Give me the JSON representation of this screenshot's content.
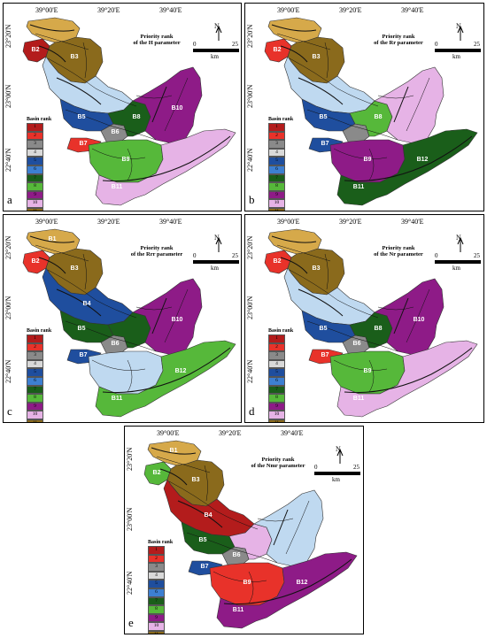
{
  "longitudes": [
    "39°00'E",
    "39°20'E",
    "39°40'E"
  ],
  "latitudes": [
    "23°20'N",
    "23°00'N",
    "22°40'N"
  ],
  "scale": {
    "zero": "0",
    "unit": "km",
    "max": "25"
  },
  "north_label": "N",
  "legend_title": "Basin rank",
  "legend_ranks": [
    "1",
    "2",
    "3",
    "4",
    "5",
    "6",
    "7",
    "8",
    "9",
    "10",
    "11",
    "12"
  ],
  "legend_colors": [
    "#b31c1c",
    "#e8322a",
    "#8a8a8a",
    "#d9d9d9",
    "#1f4e9e",
    "#3d7fd1",
    "#1a5e1a",
    "#56b83a",
    "#8e1b87",
    "#e6b3e6",
    "#8a6a1c",
    "#d6a94a"
  ],
  "panels": [
    {
      "letter": "a",
      "title1": "Priority rank",
      "title2": "of the H parameter",
      "basins": {
        "B1": "#d6a94a",
        "B2": "#b31c1c",
        "B3": "#8a6a1c",
        "B4": "#bfd9f0",
        "B5": "#1f4e9e",
        "B6": "#8a8a8a",
        "B7": "#e8322a",
        "B8": "#1a5e1a",
        "B9": "#56b83a",
        "B10": "#8e1b87",
        "B11": "#8a8a8a",
        "B12": "#e6b3e6"
      },
      "labels": [
        "B2",
        "B3",
        "B5",
        "B6",
        "B8",
        "B10",
        "B7",
        "B9",
        "B11"
      ]
    },
    {
      "letter": "b",
      "title1": "Priority rank",
      "title2": "of the Rr parameter",
      "basins": {
        "B1": "#d6a94a",
        "B2": "#e8322a",
        "B3": "#8a6a1c",
        "B4": "#bfd9f0",
        "B5": "#1f4e9e",
        "B6": "#8a8a8a",
        "B7": "#1f4e9e",
        "B8": "#56b83a",
        "B9": "#8e1b87",
        "B10": "#e6b3e6",
        "B11": "#b31c1c",
        "B12": "#1a5e1a"
      },
      "labels": [
        "B2",
        "B3",
        "B5",
        "B8",
        "B7",
        "B9",
        "B11",
        "B12"
      ]
    },
    {
      "letter": "c",
      "title1": "Priority rank",
      "title2": "of the Rrr parameter",
      "basins": {
        "B1": "#d6a94a",
        "B2": "#e8322a",
        "B3": "#8a6a1c",
        "B4": "#1f4e9e",
        "B5": "#1a5e1a",
        "B6": "#8a8a8a",
        "B7": "#1f4e9e",
        "B8": "#1a5e1a",
        "B9": "#bfd9f0",
        "B10": "#8e1b87",
        "B11": "#b31c1c",
        "B12": "#56b83a"
      },
      "labels": [
        "B1",
        "B2",
        "B3",
        "B4",
        "B5",
        "B6",
        "B7",
        "B10",
        "B11",
        "B12"
      ]
    },
    {
      "letter": "d",
      "title1": "Priority rank",
      "title2": "of the Nr parameter",
      "basins": {
        "B1": "#d6a94a",
        "B2": "#e8322a",
        "B3": "#8a6a1c",
        "B4": "#bfd9f0",
        "B5": "#1f4e9e",
        "B6": "#8a8a8a",
        "B7": "#e8322a",
        "B8": "#1a5e1a",
        "B9": "#56b83a",
        "B10": "#8e1b87",
        "B11": "#8a8a8a",
        "B12": "#e6b3e6"
      },
      "labels": [
        "B2",
        "B3",
        "B5",
        "B6",
        "B8",
        "B10",
        "B7",
        "B9",
        "B11"
      ]
    },
    {
      "letter": "e",
      "title1": "Priority rank",
      "title2": "of the Nmr parameter",
      "basins": {
        "B1": "#d6a94a",
        "B2": "#56b83a",
        "B3": "#8a6a1c",
        "B4": "#b31c1c",
        "B5": "#1a5e1a",
        "B6": "#8a8a8a",
        "B7": "#1f4e9e",
        "B8": "#e6b3e6",
        "B9": "#e8322a",
        "B10": "#bfd9f0",
        "B11": "#8a8a8a",
        "B12": "#8e1b87"
      },
      "labels": [
        "B1",
        "B2",
        "B3",
        "B4",
        "B5",
        "B6",
        "B7",
        "B9",
        "B11",
        "B12"
      ]
    }
  ]
}
